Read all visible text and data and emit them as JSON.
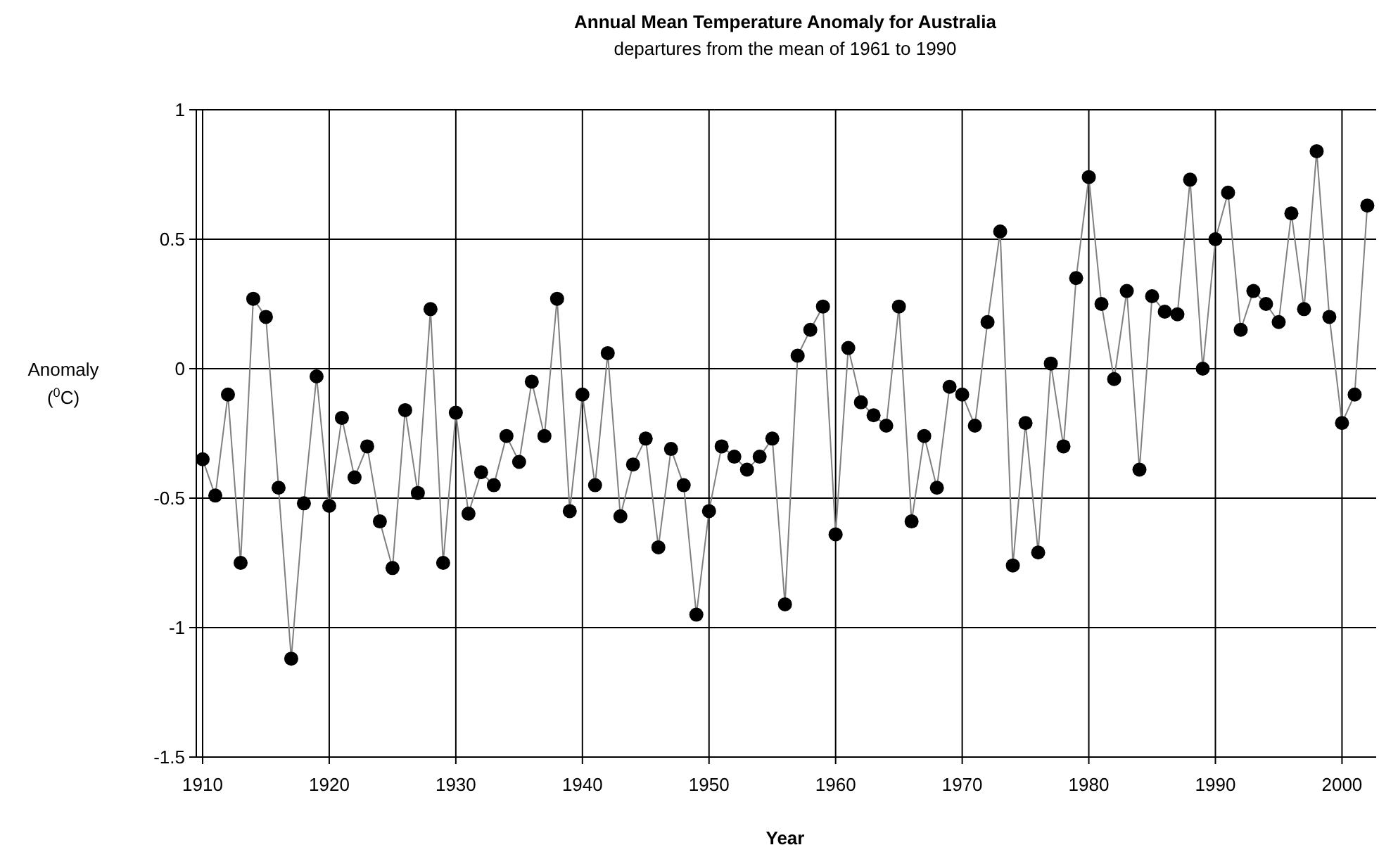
{
  "chart_data": {
    "type": "line",
    "title": "Annual Mean Temperature Anomaly for Australia",
    "subtitle": "departures from the mean of 1961 to 1990",
    "xlabel": "Year",
    "ylabel": "Anomaly\n($^{0}$C)",
    "x": [
      1910,
      1911,
      1912,
      1913,
      1914,
      1915,
      1916,
      1917,
      1918,
      1919,
      1920,
      1921,
      1922,
      1923,
      1924,
      1925,
      1926,
      1927,
      1928,
      1929,
      1930,
      1931,
      1932,
      1933,
      1934,
      1935,
      1936,
      1937,
      1938,
      1939,
      1940,
      1941,
      1942,
      1943,
      1944,
      1945,
      1946,
      1947,
      1948,
      1949,
      1950,
      1951,
      1952,
      1953,
      1954,
      1955,
      1956,
      1957,
      1958,
      1959,
      1960,
      1961,
      1962,
      1963,
      1964,
      1965,
      1966,
      1967,
      1968,
      1969,
      1970,
      1971,
      1972,
      1973,
      1974,
      1975,
      1976,
      1977,
      1978,
      1979,
      1980,
      1981,
      1982,
      1983,
      1984,
      1985,
      1986,
      1987,
      1988,
      1989,
      1990,
      1991,
      1992,
      1993,
      1994,
      1995,
      1996,
      1997,
      1998,
      1999,
      2000,
      2001,
      2002
    ],
    "series": [
      {
        "color": "#000000",
        "values": [
          -0.35,
          -0.49,
          -0.1,
          -0.75,
          0.27,
          0.2,
          -0.46,
          -1.12,
          -0.52,
          -0.03,
          -0.53,
          -0.19,
          -0.42,
          -0.3,
          -0.59,
          -0.77,
          -0.16,
          -0.48,
          0.23,
          -0.75,
          -0.17,
          -0.56,
          -0.4,
          -0.45,
          -0.26,
          -0.36,
          -0.05,
          -0.26,
          0.27,
          -0.55,
          -0.1,
          -0.45,
          0.06,
          -0.57,
          -0.37,
          -0.27,
          -0.69,
          -0.31,
          -0.45,
          -0.95,
          -0.55,
          -0.3,
          -0.34,
          -0.39,
          -0.34,
          -0.27,
          -0.91,
          0.05,
          0.15,
          0.24,
          -0.64,
          0.08,
          -0.13,
          -0.18,
          -0.22,
          0.24,
          -0.59,
          -0.26,
          -0.46,
          -0.07,
          -0.1,
          -0.22,
          0.18,
          0.53,
          -0.76,
          -0.21,
          -0.71,
          0.02,
          -0.3,
          0.35,
          0.74,
          0.25,
          -0.04,
          0.3,
          -0.39,
          0.28,
          0.22,
          0.21,
          0.73,
          0,
          0.5,
          0.68,
          0.15,
          0.3,
          0.25,
          0.18,
          0.6,
          0.23,
          0.84,
          0.2,
          -0.21,
          -0.1,
          0.63
        ]
      }
    ],
    "xlim": [
      1909.5,
      2002.7
    ],
    "xticks": [
      {
        "value": 1910,
        "label": "1910"
      },
      {
        "value": 1920,
        "label": "1920"
      },
      {
        "value": 1930,
        "label": "1930"
      },
      {
        "value": 1940,
        "label": "1940"
      },
      {
        "value": 1950,
        "label": "1950"
      },
      {
        "value": 1960,
        "label": "1960"
      },
      {
        "value": 1970,
        "label": "1970"
      },
      {
        "value": 1980,
        "label": "1980"
      },
      {
        "value": 1990,
        "label": "1990"
      },
      {
        "value": 2000,
        "label": "2000"
      }
    ],
    "ylim": [
      -1.5,
      1
    ],
    "yticks": [
      -1.5,
      -1,
      -0.5,
      0,
      0.5,
      1
    ],
    "grid": true,
    "marker": "circle",
    "line_style": "solid"
  }
}
